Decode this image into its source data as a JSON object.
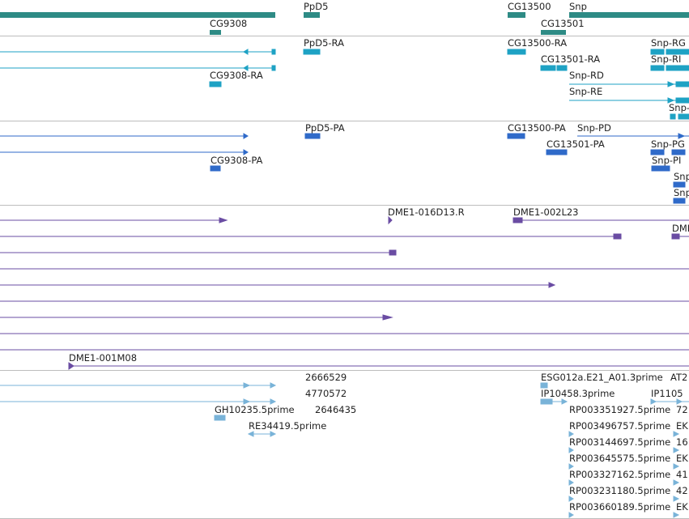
{
  "colors": {
    "gene": "#2e8b85",
    "mrna": "#1ea2c4",
    "protein": "#2f6ac9",
    "clone": "#6a4ca3",
    "est": "#79b3d8",
    "separator": "#bdbdbd"
  },
  "tracks": [
    {
      "id": "genes",
      "labels": [
        "PpD5",
        "CG13500",
        "Snp",
        "CG9308",
        "CG13501"
      ]
    },
    {
      "id": "transcripts",
      "labels": [
        "PpD5-RA",
        "CG13500-RA",
        "Snp-RG",
        "CG13501-RA",
        "Snp-RI",
        "CG9308-RA",
        "Snp-RD",
        "Snp-RE",
        "Snp-"
      ]
    },
    {
      "id": "proteins",
      "labels": [
        "PpD5-PA",
        "CG13500-PA",
        "Snp-PD",
        "CG13501-PA",
        "Snp-PG",
        "CG9308-PA",
        "Snp-PI",
        "Snp",
        "Snp"
      ]
    },
    {
      "id": "bac-clones",
      "labels": [
        "DME1-016D13.R",
        "DME1-002L23",
        "DME",
        "DME1-001M08"
      ]
    },
    {
      "id": "est-alignments",
      "labels": [
        "2666529",
        "ESG012a.E21_A01.3prime",
        "AT2",
        "4770572",
        "IP10458.3prime",
        "IP1105",
        "GH10235.5prime",
        "2646435",
        "RP003351927.5prime",
        "72",
        "RE34419.5prime",
        "RP003496757.5prime",
        "EK",
        "RP003144697.5prime",
        "16",
        "RP003645575.5prime",
        "EK",
        "RP003327162.5prime",
        "41",
        "RP003231180.5prime",
        "42",
        "RP003660189.5prime",
        "EK"
      ]
    }
  ]
}
